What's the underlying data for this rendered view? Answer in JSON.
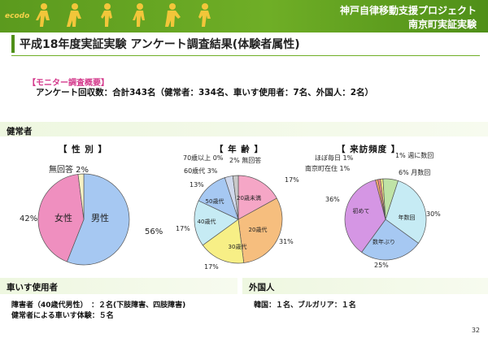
{
  "header": {
    "logo": "ecodo",
    "line1": "神戸自律移動支援プロジェクト",
    "line2": "南京町実証実験"
  },
  "title": "平成18年度実証実験 アンケート調査結果(体験者属性)",
  "overview": {
    "label": "【モニター調査概要】",
    "text": "アンケート回収数：合計343名（健常者：334名、車いす使用者：7名、外国人：2名）"
  },
  "sections": {
    "healthy": "健常者",
    "wheelchair": "車いす使用者",
    "foreign": "外国人"
  },
  "wheelchair": {
    "line1": "障害者（40歳代男性）　：２名(下肢障害、四肢障害)",
    "line2": "健常者による車いす体験：５名"
  },
  "foreign": {
    "text": "韓国：１名、ブルガリア：１名"
  },
  "page_number": "32",
  "chart_data": [
    {
      "type": "pie",
      "title": "【 性 別 】",
      "slices": [
        {
          "label": "男性",
          "value": 56,
          "pct_label": "56%",
          "color": "#a6c8f2"
        },
        {
          "label": "女性",
          "value": 42,
          "pct_label": "42%",
          "color": "#ef8fbf"
        },
        {
          "label": "無回答",
          "value": 2,
          "pct_label": "2%",
          "color": "#f7f2c4"
        }
      ]
    },
    {
      "type": "pie",
      "title": "【 年 齢 】",
      "slices": [
        {
          "label": "20歳未満",
          "value": 17,
          "pct_label": "17%",
          "color": "#f5a6c6"
        },
        {
          "label": "20歳代",
          "value": 31,
          "pct_label": "31%",
          "color": "#f6be7e"
        },
        {
          "label": "30歳代",
          "value": 17,
          "pct_label": "17%",
          "color": "#f7ef86"
        },
        {
          "label": "40歳代",
          "value": 17,
          "pct_label": "17%",
          "color": "#c6ebf4"
        },
        {
          "label": "50歳代",
          "value": 13,
          "pct_label": "13%",
          "color": "#a6c8f2"
        },
        {
          "label": "60歳代",
          "value": 3,
          "pct_label": "3%",
          "color": "#cfd8ec"
        },
        {
          "label": "70歳以上",
          "value": 0,
          "pct_label": "0%",
          "color": "#f0d8a8"
        },
        {
          "label": "無回答",
          "value": 2,
          "pct_label": "2%",
          "color": "#c9c9c9"
        }
      ]
    },
    {
      "type": "pie",
      "title": "【 来訪頻度 】",
      "slices": [
        {
          "label": "年数回",
          "value": 30,
          "pct_label": "30%",
          "color": "#c6ebf4"
        },
        {
          "label": "数年ぶり",
          "value": 25,
          "pct_label": "25%",
          "color": "#a6c8f2"
        },
        {
          "label": "初めて",
          "value": 36,
          "pct_label": "36%",
          "color": "#d596e4"
        },
        {
          "label": "南京町在住",
          "value": 1,
          "pct_label": "1%",
          "color": "#f3a66c"
        },
        {
          "label": "ほぼ毎日",
          "value": 1,
          "pct_label": "1%",
          "color": "#f28a8a"
        },
        {
          "label": "週に数回",
          "value": 1,
          "pct_label": "1%",
          "color": "#f7ef86"
        },
        {
          "label": "月数回",
          "value": 6,
          "pct_label": "6%",
          "color": "#bfe3a6"
        }
      ]
    }
  ]
}
